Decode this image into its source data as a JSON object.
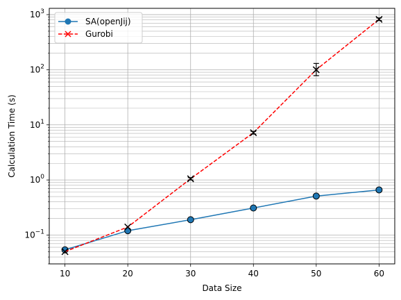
{
  "chart_data": {
    "type": "line",
    "xlabel": "Data Size",
    "ylabel": "Calculation Time (s)",
    "yscale": "log",
    "xlim": [
      7.5,
      62.5
    ],
    "ylim": [
      0.03,
      1300
    ],
    "grid": "major and minor, both axes",
    "legend_position": "top-left",
    "x_ticks": [
      10,
      20,
      30,
      40,
      50,
      60
    ],
    "y_ticks": [
      {
        "value": 0.1,
        "base": "10",
        "exp": "−1"
      },
      {
        "value": 1,
        "base": "10",
        "exp": "0"
      },
      {
        "value": 10,
        "base": "10",
        "exp": "1"
      },
      {
        "value": 100,
        "base": "10",
        "exp": "2"
      },
      {
        "value": 1000,
        "base": "10",
        "exp": "3"
      }
    ],
    "series": [
      {
        "name": "SA(openJij)",
        "color": "#1f77b4",
        "line_style": "solid",
        "marker": "circle",
        "x": [
          10,
          20,
          30,
          40,
          50,
          60
        ],
        "y": [
          0.054,
          0.12,
          0.19,
          0.31,
          0.51,
          0.66
        ]
      },
      {
        "name": "Gurobi",
        "color": "#ff0000",
        "line_style": "dashed",
        "marker": "x",
        "x": [
          10,
          20,
          30,
          40,
          50,
          60
        ],
        "y": [
          0.05,
          0.14,
          1.05,
          7.2,
          100,
          820
        ],
        "error_low": [
          0.05,
          0.14,
          1.0,
          6.8,
          78,
          780
        ],
        "error_high": [
          0.05,
          0.14,
          1.1,
          7.6,
          130,
          870
        ]
      }
    ]
  }
}
